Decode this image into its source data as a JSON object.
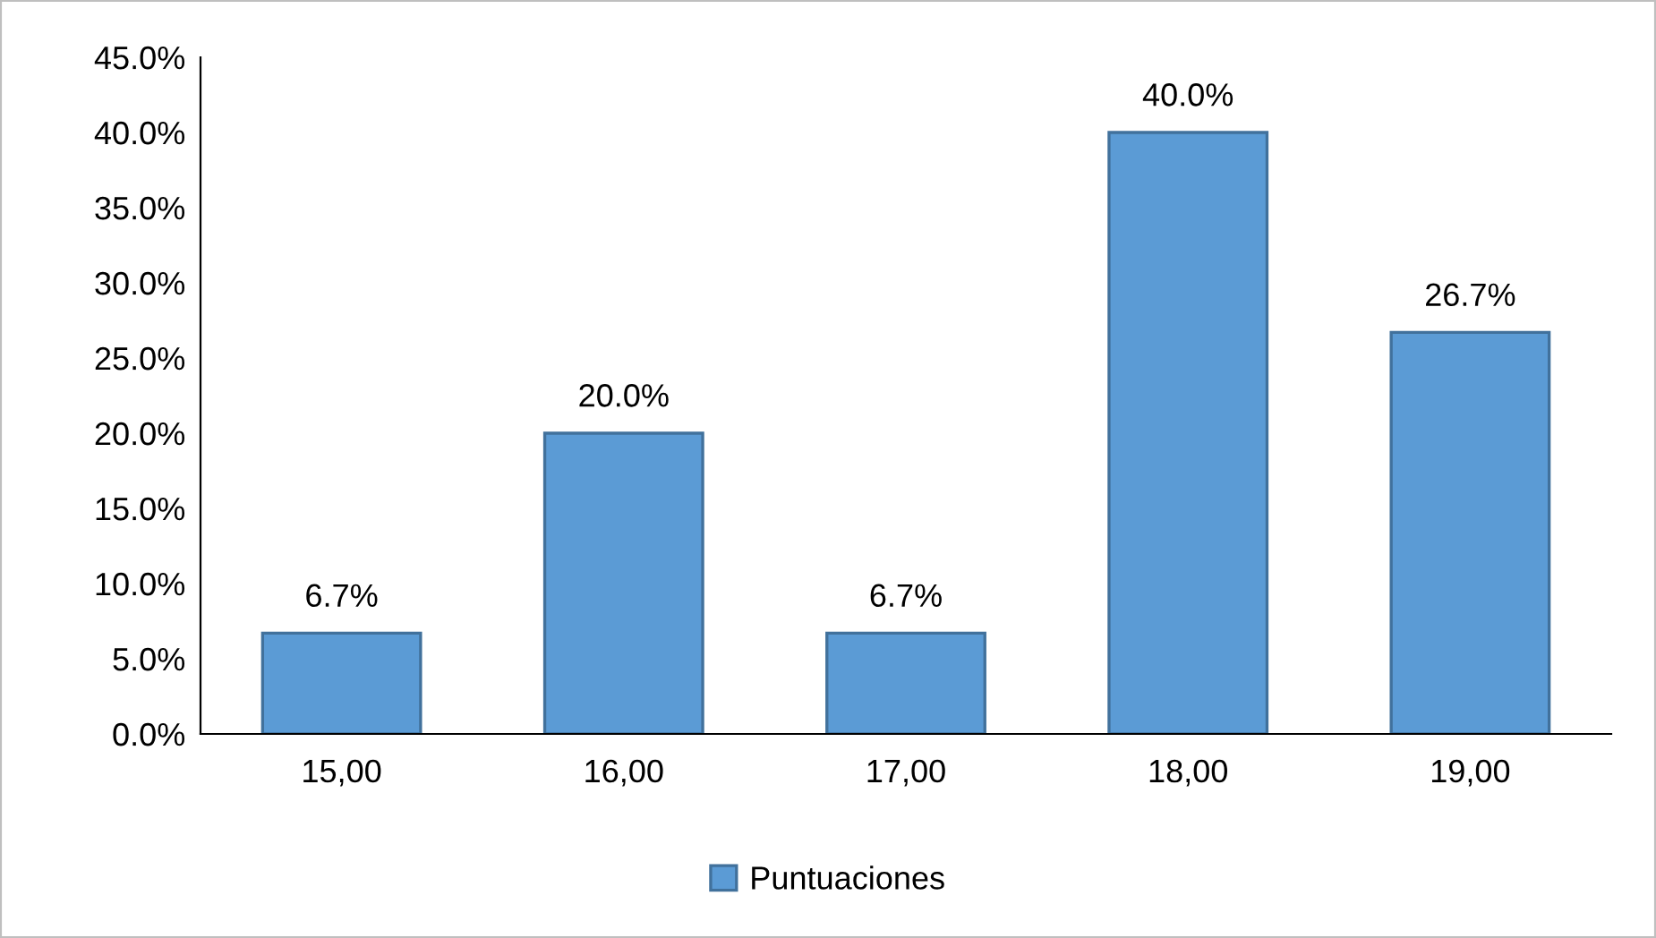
{
  "chart_data": {
    "type": "bar",
    "categories": [
      "15,00",
      "16,00",
      "17,00",
      "18,00",
      "19,00"
    ],
    "series": [
      {
        "name": "Puntuaciones",
        "color": "#5b9bd5",
        "values": [
          6.7,
          20.0,
          6.7,
          40.0,
          26.7
        ],
        "value_labels": [
          "6.7%",
          "20.0%",
          "6.7%",
          "40.0%",
          "26.7%"
        ]
      }
    ],
    "ylim": [
      0,
      45
    ],
    "yticks": [
      {
        "value": 0,
        "label": "0.0%"
      },
      {
        "value": 5,
        "label": "5.0%"
      },
      {
        "value": 10,
        "label": "10.0%"
      },
      {
        "value": 15,
        "label": "15.0%"
      },
      {
        "value": 20,
        "label": "20.0%"
      },
      {
        "value": 25,
        "label": "25.0%"
      },
      {
        "value": 30,
        "label": "30.0%"
      },
      {
        "value": 35,
        "label": "35.0%"
      },
      {
        "value": 40,
        "label": "40.0%"
      },
      {
        "value": 45,
        "label": "45.0%"
      }
    ],
    "grid": false,
    "legend": "bottom"
  }
}
